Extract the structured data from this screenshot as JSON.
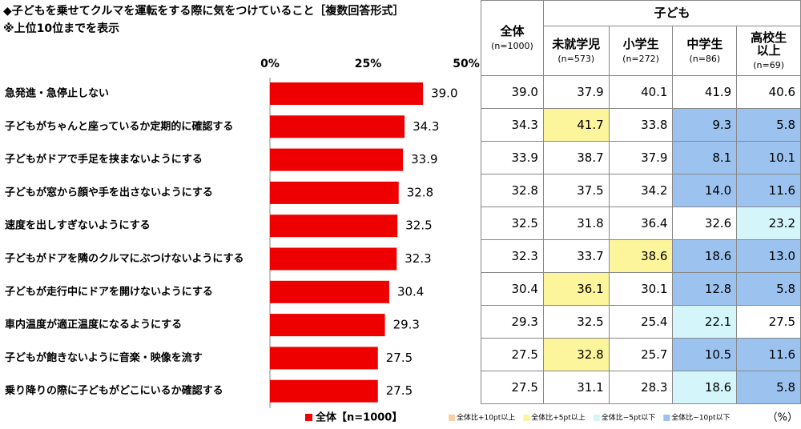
{
  "chart_data": {
    "type": "bar",
    "orientation": "horizontal",
    "title": "◆子どもを乗せてクルマを運転をする際に気をつけていること［複数回答形式］",
    "subtitle": "※上位10位までを表示",
    "categories": [
      "急発進・急停止しない",
      "子どもがちゃんと座っているか定期的に確認する",
      "子どもがドアで手足を挟まないようにする",
      "子どもが窓から顔や手を出さないようにする",
      "速度を出しすぎないようにする",
      "子どもがドアを隣のクルマにぶつけないようにする",
      "子どもが走行中にドアを開けないようにする",
      "車内温度が適正温度になるようにする",
      "子どもが飽きないように音楽・映像を流す",
      "乗り降りの際に子どもがどこにいるか確認する"
    ],
    "series": [
      {
        "name": "全体【n=1000】",
        "color": "#ee0000",
        "values": [
          39.0,
          34.3,
          33.9,
          32.8,
          32.5,
          32.3,
          30.4,
          29.3,
          27.5,
          27.5
        ],
        "value_labels": [
          "39.0",
          "34.3",
          "33.9",
          "32.8",
          "32.5",
          "32.3",
          "30.4",
          "29.3",
          "27.5",
          "27.5"
        ]
      }
    ],
    "xlim": [
      0,
      50
    ],
    "xticks": [
      {
        "value": 0,
        "label": "0%"
      },
      {
        "value": 25,
        "label": "25%"
      },
      {
        "value": 50,
        "label": "50%"
      }
    ],
    "legend": "bottom"
  },
  "table": {
    "group": "子ども",
    "columns": [
      {
        "label": "全体",
        "n": "(n=1000)"
      },
      {
        "label": "未就学児",
        "n": "(n=573)"
      },
      {
        "label": "小学生",
        "n": "(n=272)"
      },
      {
        "label": "中学生",
        "n": "(n=86)"
      },
      {
        "label": "高校生以上",
        "n": "(n=69)"
      }
    ],
    "rows": [
      [
        {
          "text": "39.0"
        },
        {
          "text": "37.9"
        },
        {
          "text": "40.1"
        },
        {
          "text": "41.9"
        },
        {
          "text": "40.6"
        }
      ],
      [
        {
          "text": "34.3"
        },
        {
          "text": "41.7",
          "fill": "#fdf59c"
        },
        {
          "text": "33.8"
        },
        {
          "text": "9.3",
          "fill": "#9cc3ef"
        },
        {
          "text": "5.8",
          "fill": "#9cc3ef"
        }
      ],
      [
        {
          "text": "33.9"
        },
        {
          "text": "38.7"
        },
        {
          "text": "37.9"
        },
        {
          "text": "8.1",
          "fill": "#9cc3ef"
        },
        {
          "text": "10.1",
          "fill": "#9cc3ef"
        }
      ],
      [
        {
          "text": "32.8"
        },
        {
          "text": "37.5"
        },
        {
          "text": "34.2"
        },
        {
          "text": "14.0",
          "fill": "#9cc3ef"
        },
        {
          "text": "11.6",
          "fill": "#9cc3ef"
        }
      ],
      [
        {
          "text": "32.5"
        },
        {
          "text": "31.8"
        },
        {
          "text": "36.4"
        },
        {
          "text": "32.6"
        },
        {
          "text": "23.2",
          "fill": "#d4f6fb"
        }
      ],
      [
        {
          "text": "32.3"
        },
        {
          "text": "33.7"
        },
        {
          "text": "38.6",
          "fill": "#fdf59c"
        },
        {
          "text": "18.6",
          "fill": "#9cc3ef"
        },
        {
          "text": "13.0",
          "fill": "#9cc3ef"
        }
      ],
      [
        {
          "text": "30.4"
        },
        {
          "text": "36.1",
          "fill": "#fdf59c"
        },
        {
          "text": "30.1"
        },
        {
          "text": "12.8",
          "fill": "#9cc3ef"
        },
        {
          "text": "5.8",
          "fill": "#9cc3ef"
        }
      ],
      [
        {
          "text": "29.3"
        },
        {
          "text": "32.5"
        },
        {
          "text": "25.4"
        },
        {
          "text": "22.1",
          "fill": "#d4f6fb"
        },
        {
          "text": "27.5"
        }
      ],
      [
        {
          "text": "27.5"
        },
        {
          "text": "32.8",
          "fill": "#fdf59c"
        },
        {
          "text": "25.7"
        },
        {
          "text": "10.5",
          "fill": "#9cc3ef"
        },
        {
          "text": "11.6",
          "fill": "#9cc3ef"
        }
      ],
      [
        {
          "text": "27.5"
        },
        {
          "text": "31.1"
        },
        {
          "text": "28.3"
        },
        {
          "text": "18.6",
          "fill": "#d4f6fb"
        },
        {
          "text": "5.8",
          "fill": "#9cc3ef"
        }
      ]
    ],
    "legend": [
      {
        "label": "全体比+10pt以上",
        "fill": "#f8d0a4"
      },
      {
        "label": "全体比+5pt以上",
        "fill": "#fdf59c"
      },
      {
        "label": "全体比−5pt以下",
        "fill": "#d4f6fb"
      },
      {
        "label": "全体比−10pt以下",
        "fill": "#9cc3ef"
      }
    ],
    "unit": "（%）"
  }
}
